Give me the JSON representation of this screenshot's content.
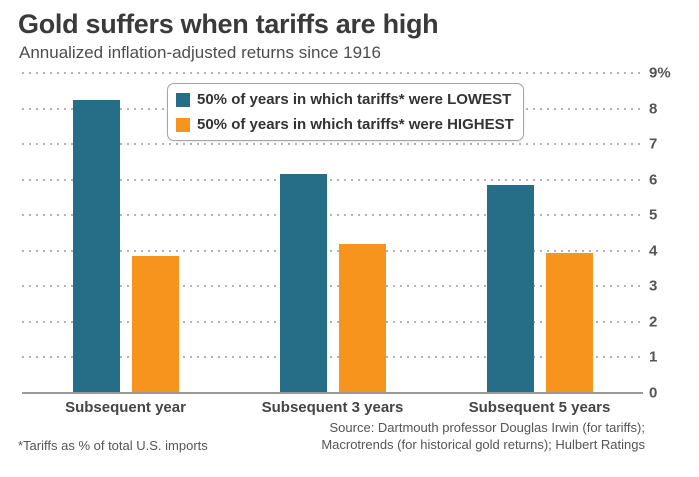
{
  "header": {
    "title": "Gold suffers when tariffs are high",
    "subtitle": "Annualized inflation-adjusted returns since 1916"
  },
  "legend": {
    "items": [
      {
        "label": "50% of years in which tariffs* were LOWEST",
        "color": "#266e87"
      },
      {
        "label": "50% of years in which tariffs* were HIGHEST",
        "color": "#f7941e"
      }
    ]
  },
  "footer": {
    "footnote": "*Tariffs as % of total U.S. imports",
    "source_line1": "Source: Dartmouth professor Douglas Irwin (for tariffs);",
    "source_line2": "Macrotrends (for historical gold returns); Hulbert Ratings"
  },
  "colors": {
    "lowest_series": "#266e87",
    "highest_series": "#f7941e",
    "gridline": "#b3b3b3",
    "baseline": "#999999",
    "title_text": "#3a3a3a"
  },
  "chart_data": {
    "type": "bar",
    "title": "Gold suffers when tariffs are high",
    "subtitle": "Annualized inflation-adjusted returns since 1916",
    "categories": [
      "Subsequent year",
      "Subsequent 3 years",
      "Subsequent 5 years"
    ],
    "series": [
      {
        "name": "50% of years in which tariffs* were LOWEST",
        "color": "#266e87",
        "values": [
          8.25,
          6.15,
          5.85
        ]
      },
      {
        "name": "50% of years in which tariffs* were HIGHEST",
        "color": "#f7941e",
        "values": [
          3.85,
          4.2,
          3.95
        ]
      }
    ],
    "xlabel": "",
    "ylabel": "",
    "ylim": [
      0,
      9
    ],
    "yticks": [
      "0",
      "1",
      "2",
      "3",
      "4",
      "5",
      "6",
      "7",
      "8",
      "9%"
    ],
    "grid": "horizontal-dotted",
    "legend_position": "top-center-inside"
  }
}
